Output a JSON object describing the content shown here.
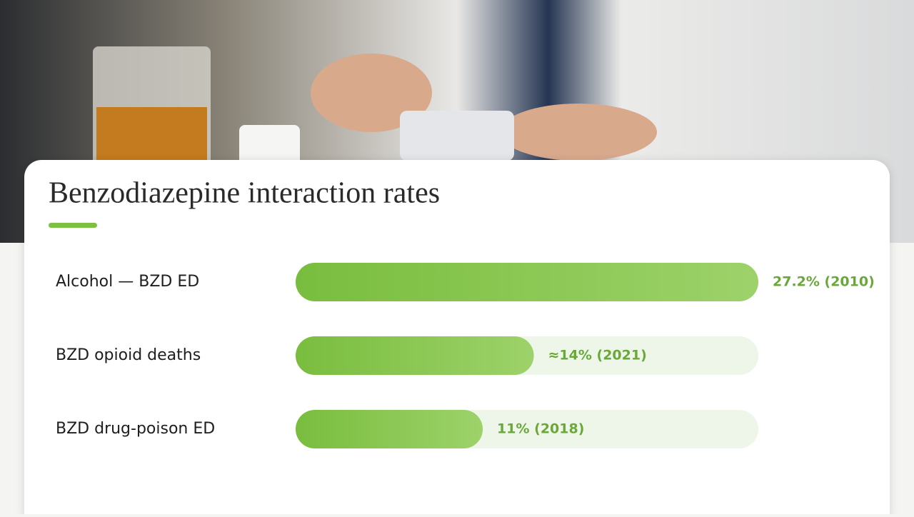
{
  "chart_data": {
    "type": "bar",
    "title": "Benzodiazepine interaction rates",
    "categories": [
      "Alcohol — BZD ED",
      "BZD opioid deaths",
      "BZD drug-poison ED"
    ],
    "values": [
      27.2,
      14,
      11
    ],
    "value_labels": [
      "27.2% (2010)",
      "≈14% (2021)",
      "11% (2018)"
    ],
    "xlim": [
      0,
      27.2
    ],
    "color": "#7dc142"
  }
}
